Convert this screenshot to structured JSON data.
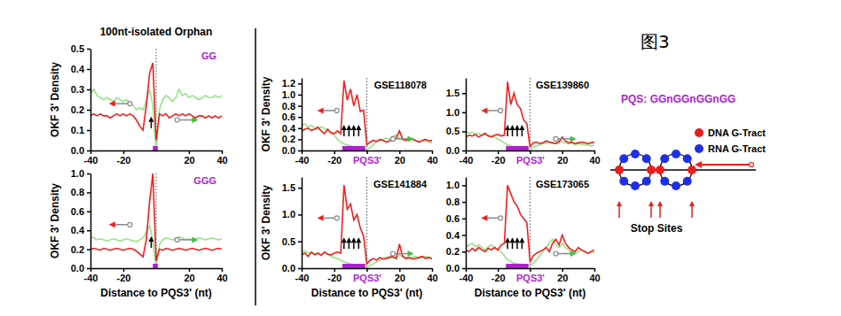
{
  "figure_label": "图3",
  "group_title": "100nt-isolated Orphan",
  "pqs_label": "PQS: GGnGGnGGnGG",
  "diagram": {
    "legend": [
      {
        "name": "DNA G-Tract",
        "color": "#ee1c1c"
      },
      {
        "name": "RNA G-Tract",
        "color": "#1f2fe8"
      }
    ],
    "label": "Stop Sites"
  },
  "chart_data": [
    {
      "type": "line",
      "title": "GG",
      "ylabel": "OKF 3' Density",
      "xlim": [
        -40,
        40
      ],
      "xticks": [
        -40,
        -20,
        20,
        40
      ],
      "ylim": [
        0,
        0.5
      ],
      "yticks": [
        {
          "value": 0,
          "label": "0.0"
        },
        0.1,
        0.2,
        0.3,
        0.4,
        0.5
      ],
      "reference_line": 0,
      "pqs_span": [
        -2,
        1
      ],
      "stop_sites": [
        -3
      ],
      "x": [
        -40,
        -38,
        -36,
        -34,
        -32,
        -30,
        -28,
        -26,
        -24,
        -22,
        -20,
        -18,
        -16,
        -14,
        -12,
        -10,
        -8,
        -6,
        -4,
        -2,
        0,
        2,
        4,
        6,
        8,
        10,
        12,
        14,
        16,
        18,
        20,
        22,
        24,
        26,
        28,
        30,
        32,
        34,
        36,
        38,
        40
      ],
      "series": [
        {
          "color": "#9be28c",
          "values": [
            0.28,
            0.3,
            0.27,
            0.26,
            0.25,
            0.26,
            0.25,
            0.24,
            0.26,
            0.25,
            0.24,
            0.25,
            0.23,
            0.22,
            0.2,
            0.21,
            0.2,
            0.24,
            0.3,
            0.22,
            0,
            0.2,
            0.25,
            0.27,
            0.26,
            0.24,
            0.26,
            0.3,
            0.27,
            0.28,
            0.26,
            0.27,
            0.26,
            0.25,
            0.26,
            0.27,
            0.26,
            0.26,
            0.27,
            0.26,
            0.27
          ]
        },
        {
          "color": "#ee2020",
          "values": [
            0.17,
            0.18,
            0.17,
            0.18,
            0.17,
            0.17,
            0.16,
            0.17,
            0.18,
            0.17,
            0.18,
            0.17,
            0.18,
            0.17,
            0.15,
            0.12,
            0.1,
            0.22,
            0.38,
            0.43,
            0.05,
            0.18,
            0.17,
            0.18,
            0.16,
            0.17,
            0.18,
            0.17,
            0.18,
            0.17,
            0.18,
            0.17,
            0.16,
            0.17,
            0.17,
            0.16,
            0.17,
            0.16,
            0.17,
            0.16,
            0.17
          ]
        }
      ]
    },
    {
      "type": "line",
      "title": "GGG",
      "ylabel": "OKF 3' Density",
      "xlabel": "Distance to PQS3' (nt)",
      "xlim": [
        -40,
        40
      ],
      "xticks": [
        -40,
        -20,
        20,
        40
      ],
      "ylim": [
        0,
        1
      ],
      "yticks": [
        {
          "value": 0,
          "label": "0.0"
        },
        0.2,
        0.4,
        0.6,
        0.8,
        {
          "value": 1,
          "label": "1.0"
        }
      ],
      "reference_line": 0,
      "pqs_span": [
        -2,
        1
      ],
      "stop_sites": [
        -3
      ],
      "x": [
        -40,
        -38,
        -36,
        -34,
        -32,
        -30,
        -28,
        -26,
        -24,
        -22,
        -20,
        -18,
        -16,
        -14,
        -12,
        -10,
        -8,
        -6,
        -4,
        -2,
        0,
        2,
        4,
        6,
        8,
        10,
        12,
        14,
        16,
        18,
        20,
        22,
        24,
        26,
        28,
        30,
        32,
        34,
        36,
        38,
        40
      ],
      "series": [
        {
          "color": "#9be28c",
          "values": [
            0.33,
            0.32,
            0.3,
            0.31,
            0.3,
            0.29,
            0.3,
            0.31,
            0.3,
            0.29,
            0.3,
            0.31,
            0.3,
            0.29,
            0.28,
            0.3,
            0.32,
            0.38,
            0.45,
            0.3,
            0,
            0.25,
            0.3,
            0.32,
            0.31,
            0.3,
            0.31,
            0.33,
            0.32,
            0.3,
            0.31,
            0.3,
            0.31,
            0.32,
            0.31,
            0.3,
            0.31,
            0.32,
            0.31,
            0.3,
            0.31
          ]
        },
        {
          "color": "#ee2020",
          "values": [
            0.2,
            0.21,
            0.2,
            0.19,
            0.21,
            0.2,
            0.19,
            0.2,
            0.21,
            0.2,
            0.19,
            0.2,
            0.21,
            0.2,
            0.18,
            0.15,
            0.12,
            0.3,
            0.7,
            1.0,
            0.08,
            0.2,
            0.19,
            0.21,
            0.2,
            0.19,
            0.2,
            0.21,
            0.2,
            0.19,
            0.2,
            0.21,
            0.2,
            0.19,
            0.2,
            0.21,
            0.2,
            0.19,
            0.2,
            0.21,
            0.2
          ]
        }
      ]
    },
    {
      "type": "line",
      "title": "GSE118078",
      "ylabel": "OKF 3' Density",
      "xlim": [
        -40,
        40
      ],
      "xticks": [
        -40,
        -20,
        {
          "value": 0,
          "label": "PQS3'"
        },
        20,
        40
      ],
      "ylim": [
        0,
        1.3
      ],
      "yticks": [
        {
          "value": 0,
          "label": "0.0"
        },
        0.2,
        0.4,
        0.6,
        0.8,
        {
          "value": 1,
          "label": "1.0"
        },
        1.2
      ],
      "reference_line": 0,
      "pqs_span": [
        -15,
        -1
      ],
      "stop_sites": [
        -14,
        -11,
        -8,
        -5
      ],
      "x": [
        -40,
        -38,
        -36,
        -34,
        -32,
        -30,
        -28,
        -26,
        -24,
        -22,
        -20,
        -18,
        -16,
        -14,
        -12,
        -10,
        -8,
        -6,
        -4,
        -2,
        0,
        2,
        4,
        6,
        8,
        10,
        12,
        14,
        16,
        18,
        20,
        22,
        24,
        26,
        28,
        30,
        32,
        34,
        36,
        38,
        40
      ],
      "series": [
        {
          "color": "#9be28c",
          "values": [
            0.45,
            0.48,
            0.42,
            0.45,
            0.4,
            0.38,
            0.42,
            0.4,
            0.35,
            0.3,
            0.28,
            0.2,
            0.15,
            0.12,
            0.1,
            0.08,
            0.06,
            0.05,
            0.05,
            0.04,
            0.02,
            0.05,
            0.1,
            0.15,
            0.18,
            0.2,
            0.22,
            0.2,
            0.25,
            0.28,
            0.22,
            0.2,
            0.18,
            0.2,
            0.22,
            0.18,
            0.15,
            0.16,
            0.18,
            0.15,
            0.14
          ]
        },
        {
          "color": "#ee2020",
          "values": [
            0.35,
            0.38,
            0.4,
            0.36,
            0.38,
            0.42,
            0.35,
            0.3,
            0.38,
            0.32,
            0.3,
            0.35,
            0.3,
            1.25,
            0.9,
            1.1,
            0.8,
            1.0,
            0.7,
            0.72,
            0.1,
            0.15,
            0.18,
            0.16,
            0.2,
            0.18,
            0.15,
            0.17,
            0.2,
            0.22,
            0.35,
            0.2,
            0.18,
            0.22,
            0.2,
            0.18,
            0.15,
            0.18,
            0.2,
            0.17,
            0.18
          ]
        }
      ]
    },
    {
      "type": "line",
      "title": "GSE139860",
      "xlim": [
        -40,
        40
      ],
      "xticks": [
        -40,
        -20,
        {
          "value": 0,
          "label": "PQS3'"
        },
        20,
        40
      ],
      "ylim": [
        0,
        1.9
      ],
      "yticks": [
        {
          "value": 0,
          "label": "0.0"
        },
        0.5,
        {
          "value": 1,
          "label": "1.0"
        },
        1.5
      ],
      "reference_line": 0,
      "pqs_span": [
        -15,
        -1
      ],
      "stop_sites": [
        -14,
        -11,
        -8,
        -5
      ],
      "x": [
        -40,
        -38,
        -36,
        -34,
        -32,
        -30,
        -28,
        -26,
        -24,
        -22,
        -20,
        -18,
        -16,
        -14,
        -12,
        -10,
        -8,
        -6,
        -4,
        -2,
        0,
        2,
        4,
        6,
        8,
        10,
        12,
        14,
        16,
        18,
        20,
        22,
        24,
        26,
        28,
        30,
        32,
        34,
        36,
        38,
        40
      ],
      "series": [
        {
          "color": "#9be28c",
          "values": [
            0.5,
            0.45,
            0.48,
            0.42,
            0.45,
            0.4,
            0.42,
            0.38,
            0.4,
            0.35,
            0.3,
            0.25,
            0.2,
            0.15,
            0.12,
            0.1,
            0.08,
            0.06,
            0.05,
            0.05,
            0.03,
            0.08,
            0.12,
            0.15,
            0.18,
            0.2,
            0.22,
            0.2,
            0.18,
            0.25,
            0.22,
            0.2,
            0.18,
            0.2,
            0.15,
            0.18,
            0.16,
            0.14,
            0.15,
            0.12,
            0.14
          ]
        },
        {
          "color": "#ee2020",
          "values": [
            0.35,
            0.4,
            0.38,
            0.42,
            0.35,
            0.4,
            0.45,
            0.38,
            0.35,
            0.4,
            0.42,
            0.38,
            0.4,
            1.8,
            1.2,
            1.5,
            1.2,
            1.1,
            0.8,
            0.7,
            0.1,
            0.2,
            0.22,
            0.18,
            0.2,
            0.25,
            0.22,
            0.2,
            0.18,
            0.22,
            0.35,
            0.25,
            0.2,
            0.22,
            0.18,
            0.2,
            0.22,
            0.2,
            0.18,
            0.2,
            0.22
          ]
        }
      ]
    },
    {
      "type": "line",
      "title": "GSE141884",
      "ylabel": "OKF 3' Density",
      "xlabel": "Distance to PQS3' (nt)",
      "xlim": [
        -40,
        40
      ],
      "xticks": [
        -40,
        -20,
        {
          "value": 0,
          "label": "PQS3'"
        },
        20,
        40
      ],
      "ylim": [
        0,
        1.7
      ],
      "yticks": [
        {
          "value": 0,
          "label": "0.0"
        },
        0.5,
        {
          "value": 1,
          "label": "1.0"
        },
        1.5
      ],
      "reference_line": 0,
      "pqs_span": [
        -15,
        -1
      ],
      "stop_sites": [
        -14,
        -11,
        -8,
        -5
      ],
      "x": [
        -40,
        -38,
        -36,
        -34,
        -32,
        -30,
        -28,
        -26,
        -24,
        -22,
        -20,
        -18,
        -16,
        -14,
        -12,
        -10,
        -8,
        -6,
        -4,
        -2,
        0,
        2,
        4,
        6,
        8,
        10,
        12,
        14,
        16,
        18,
        20,
        22,
        24,
        26,
        28,
        30,
        32,
        34,
        36,
        38,
        40
      ],
      "series": [
        {
          "color": "#9be28c",
          "values": [
            0.3,
            0.32,
            0.28,
            0.3,
            0.27,
            0.28,
            0.25,
            0.3,
            0.26,
            0.22,
            0.2,
            0.18,
            0.15,
            0.12,
            0.1,
            0.08,
            0.06,
            0.05,
            0.05,
            0.04,
            0.02,
            0.05,
            0.08,
            0.12,
            0.15,
            0.18,
            0.2,
            0.22,
            0.18,
            0.2,
            0.25,
            0.22,
            0.2,
            0.18,
            0.2,
            0.22,
            0.18,
            0.2,
            0.22,
            0.2,
            0.18
          ]
        },
        {
          "color": "#ee2020",
          "values": [
            0.25,
            0.28,
            0.22,
            0.3,
            0.25,
            0.28,
            0.24,
            0.3,
            0.26,
            0.25,
            0.28,
            0.3,
            0.28,
            1.55,
            1.1,
            1.2,
            0.9,
            1.0,
            0.75,
            0.6,
            0.08,
            0.15,
            0.18,
            0.15,
            0.2,
            0.17,
            0.18,
            0.2,
            0.22,
            0.18,
            0.45,
            0.22,
            0.18,
            0.2,
            0.17,
            0.18,
            0.2,
            0.22,
            0.18,
            0.2,
            0.18
          ]
        }
      ]
    },
    {
      "type": "line",
      "title": "GSE173065",
      "xlabel": "Distance to PQS3' (nt)",
      "xlim": [
        -40,
        40
      ],
      "xticks": [
        -40,
        -20,
        {
          "value": 0,
          "label": "PQS3'"
        },
        20,
        40
      ],
      "ylim": [
        0,
        1.1
      ],
      "yticks": [
        {
          "value": 0,
          "label": "0.0"
        },
        0.2,
        0.4,
        0.6,
        0.8,
        {
          "value": 1,
          "label": "1.0"
        }
      ],
      "reference_line": 0,
      "pqs_span": [
        -15,
        -1
      ],
      "stop_sites": [
        -14,
        -11,
        -8,
        -5
      ],
      "x": [
        -40,
        -38,
        -36,
        -34,
        -32,
        -30,
        -28,
        -26,
        -24,
        -22,
        -20,
        -18,
        -16,
        -14,
        -12,
        -10,
        -8,
        -6,
        -4,
        -2,
        0,
        2,
        4,
        6,
        8,
        10,
        12,
        14,
        16,
        18,
        20,
        22,
        24,
        26,
        28,
        30,
        32,
        34,
        36,
        38,
        40
      ],
      "series": [
        {
          "color": "#9be28c",
          "values": [
            0.25,
            0.28,
            0.3,
            0.26,
            0.28,
            0.25,
            0.22,
            0.26,
            0.28,
            0.25,
            0.22,
            0.2,
            0.15,
            0.1,
            0.08,
            0.06,
            0.05,
            0.05,
            0.04,
            0.04,
            0.03,
            0.06,
            0.1,
            0.15,
            0.2,
            0.25,
            0.3,
            0.35,
            0.28,
            0.25,
            0.3,
            0.25,
            0.22,
            0.2,
            0.18,
            0.2,
            0.22,
            0.2,
            0.18,
            0.2,
            0.18
          ]
        },
        {
          "color": "#ee2020",
          "values": [
            0.22,
            0.2,
            0.24,
            0.21,
            0.25,
            0.22,
            0.2,
            0.24,
            0.22,
            0.25,
            0.22,
            0.28,
            0.3,
            1.0,
            0.9,
            0.8,
            0.75,
            0.65,
            0.6,
            0.55,
            0.08,
            0.15,
            0.18,
            0.2,
            0.22,
            0.25,
            0.2,
            0.3,
            0.35,
            0.28,
            0.4,
            0.3,
            0.25,
            0.22,
            0.2,
            0.25,
            0.22,
            0.2,
            0.18,
            0.2,
            0.22
          ]
        }
      ]
    }
  ]
}
